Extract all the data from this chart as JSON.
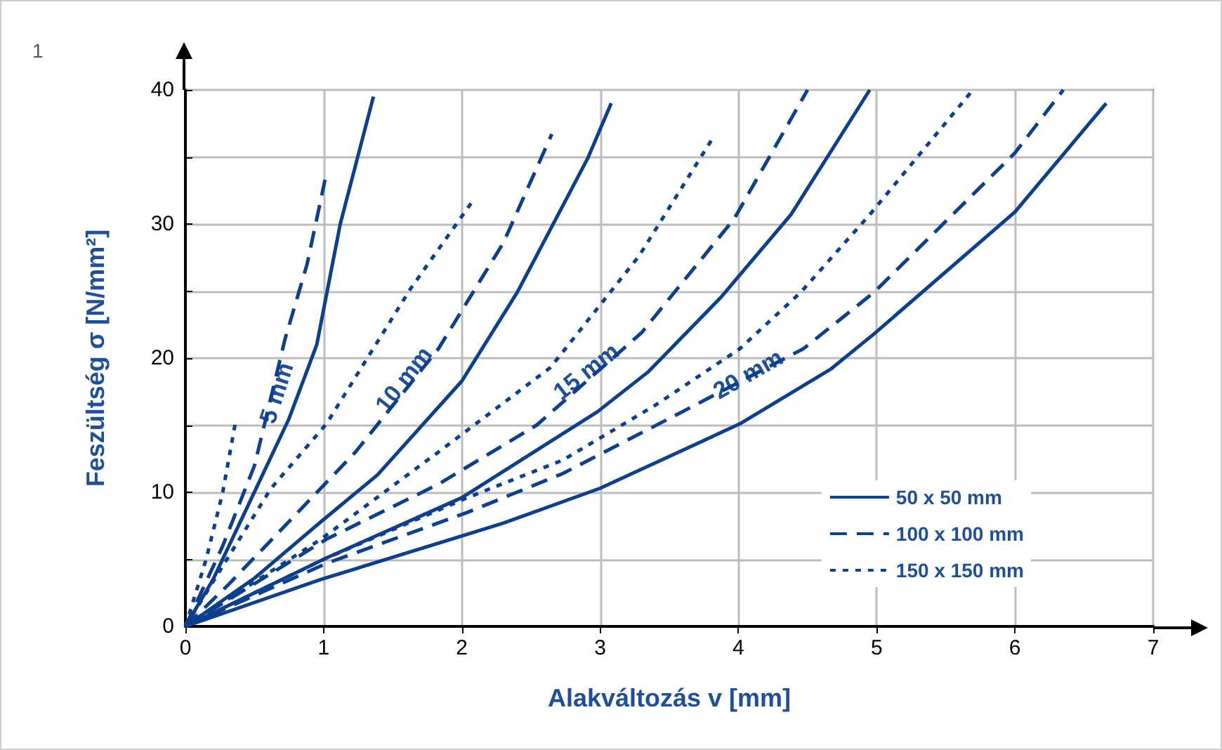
{
  "chart_data": {
    "type": "line",
    "xlabel": "Alakváltozás v [mm]",
    "ylabel": "Feszültség σ [N/mm²]",
    "xlim": [
      0,
      7
    ],
    "xticks": [
      0,
      1,
      2,
      3,
      4,
      5,
      6,
      7
    ],
    "ylim": [
      0,
      40
    ],
    "yticks": [
      0,
      {
        "value": 5,
        "label": null
      },
      10,
      {
        "value": 15,
        "label": null
      },
      20,
      {
        "value": 25,
        "label": null
      },
      30,
      {
        "value": 35,
        "label": null
      },
      40
    ],
    "grid": true,
    "legend": "bottom right",
    "marker": "none",
    "annotations": [
      "1",
      {
        "text": "5 mm",
        "x": 0.66,
        "y": 17.4
      },
      {
        "text": "10 mm",
        "x": 1.58,
        "y": 18.4
      },
      {
        "text": "15 mm",
        "x": 2.9,
        "y": 19
      },
      {
        "text": "20 mm",
        "x": 4.07,
        "y": 18.8
      }
    ],
    "series": [
      {
        "name": "50 x 50 mm",
        "color": "#0d3f8f",
        "line_style": "solid",
        "x": [
          0,
          0.2,
          0.48,
          0.75,
          0.95,
          1.12,
          1.36
        ],
        "values": [
          0,
          3.5,
          9.6,
          15.5,
          21,
          30,
          39.5
        ]
      },
      {
        "name": "100 x 100 mm",
        "color": "#0d3f8f",
        "line_style": "dashed",
        "x": [
          0,
          0.27,
          0.5,
          0.72,
          0.88,
          1.01
        ],
        "values": [
          0,
          6,
          12,
          21.4,
          27,
          33.3
        ]
      },
      {
        "name": "150 x 150 mm",
        "color": "#0d3f8f",
        "line_style": "dotted",
        "x": [
          0,
          0.15,
          0.27,
          0.36
        ],
        "values": [
          0,
          5,
          10,
          15.1
        ]
      },
      {
        "color": "#0d3f8f",
        "line_style": "solid",
        "x": [
          0,
          0.5,
          0.98,
          1.39,
          2.0,
          2.4,
          2.91,
          3.08
        ],
        "values": [
          0,
          3.6,
          7.8,
          11.3,
          18.3,
          24.9,
          34.9,
          39
        ]
      },
      {
        "color": "#0d3f8f",
        "line_style": "dashed",
        "x": [
          0,
          0.3,
          0.72,
          1.23,
          1.83,
          2.3,
          2.65
        ],
        "values": [
          0,
          3,
          7.5,
          13,
          20.7,
          28.6,
          36.7
        ]
      },
      {
        "color": "#0d3f8f",
        "line_style": "dotted",
        "x": [
          0,
          0.3,
          0.62,
          1.02,
          1.63,
          2.07
        ],
        "values": [
          0,
          5,
          10.3,
          15.1,
          25.2,
          31.6
        ]
      },
      {
        "color": "#0d3f8f",
        "line_style": "solid",
        "x": [
          0,
          1.02,
          2.0,
          2.98,
          3.35,
          3.87,
          4.38,
          4.95
        ],
        "values": [
          0,
          5.1,
          9.6,
          16,
          19,
          24.5,
          30.7,
          40
        ]
      },
      {
        "color": "#0d3f8f",
        "line_style": "dashed",
        "x": [
          0,
          1.02,
          1.83,
          2.54,
          3.3,
          3.97,
          4.5
        ],
        "values": [
          0,
          6.5,
          10.6,
          15,
          21.9,
          30.4,
          40
        ]
      },
      {
        "color": "#0d3f8f",
        "line_style": "dotted",
        "x": [
          0,
          0.98,
          1.83,
          2.64,
          3.28,
          3.82
        ],
        "values": [
          0,
          6.5,
          13,
          19.3,
          27.6,
          36.5
        ]
      },
      {
        "color": "#0d3f8f",
        "line_style": "solid",
        "x": [
          0,
          0.98,
          2.3,
          3.0,
          4.01,
          4.67,
          4.98,
          6.0,
          6.66
        ],
        "values": [
          0,
          3.5,
          7.7,
          10.3,
          15.1,
          19.2,
          21.8,
          30.9,
          39
        ]
      },
      {
        "color": "#0d3f8f",
        "line_style": "dashed",
        "x": [
          0,
          1.02,
          2.04,
          2.73,
          3.5,
          4.47,
          4.98,
          6.0,
          6.35
        ],
        "values": [
          0,
          4.7,
          8.5,
          11.4,
          15.5,
          20.7,
          24.9,
          35.3,
          40
        ]
      },
      {
        "color": "#0d3f8f",
        "line_style": "dotted",
        "x": [
          0,
          1.0,
          2.04,
          2.73,
          3.4,
          4.01,
          4.45,
          4.95,
          5.68
        ],
        "values": [
          0,
          5,
          9.6,
          12.4,
          16.5,
          20.7,
          24.9,
          30.7,
          39.8
        ]
      }
    ]
  }
}
